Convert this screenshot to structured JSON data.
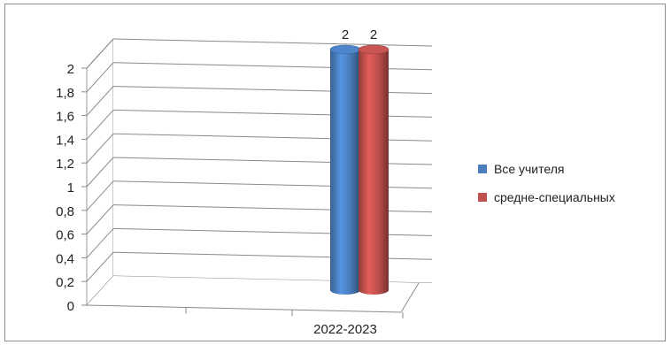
{
  "chart_data": {
    "type": "bar",
    "style": "3d-cylinder",
    "categories": [
      "2022-2023"
    ],
    "series": [
      {
        "name": "Все учителя",
        "values": [
          2
        ],
        "color": "#4a7ebf"
      },
      {
        "name": "средне-специальных",
        "values": [
          2
        ],
        "color": "#c0504d"
      }
    ],
    "ylim": [
      0,
      2
    ],
    "yticks": [
      "0",
      "0,2",
      "0,4",
      "0,6",
      "0,8",
      "1",
      "1,2",
      "1,4",
      "1,6",
      "1,8",
      "2"
    ],
    "data_labels": [
      "2",
      "2"
    ],
    "grid": true,
    "legend": "right"
  }
}
